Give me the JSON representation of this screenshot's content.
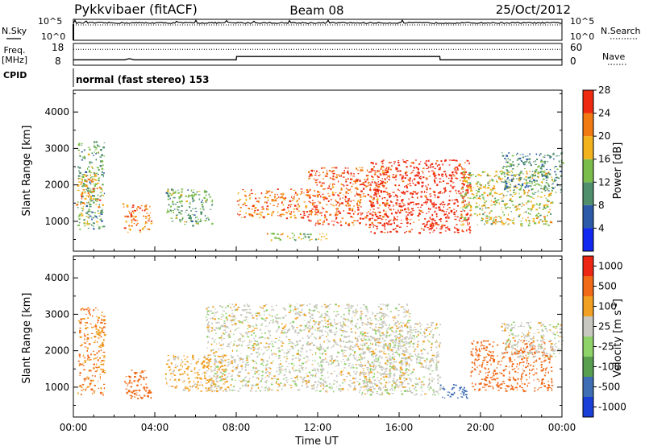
{
  "header": {
    "radar": "Pykkvibaer (fitACF)",
    "beam": "Beam 08",
    "date": "25/Oct/2012"
  },
  "chart_data": [
    {
      "type": "line",
      "panel": "nsky-nsearch",
      "left_label": "N.Sky",
      "right_label": "N.Search",
      "left_ticks": [
        "10^5",
        "10^0"
      ],
      "right_ticks": [
        "10^5",
        "10^0"
      ],
      "x": [
        "00:00",
        "04:00",
        "08:00",
        "12:00",
        "16:00",
        "20:00",
        "00:00"
      ],
      "series": [
        {
          "name": "N.Sky",
          "level": 10000.0
        },
        {
          "name": "N.Search",
          "level": 100000.0
        }
      ]
    },
    {
      "type": "line",
      "panel": "freq-nave",
      "left_label_lines": [
        "Freq.",
        "[MHz]"
      ],
      "right_label": "Nave",
      "left_ticks": [
        "18",
        "8"
      ],
      "right_ticks": [
        "60",
        "0"
      ],
      "left_ylim": [
        8,
        18
      ],
      "right_ylim": [
        0,
        60
      ],
      "series": [
        {
          "name": "Freq.",
          "x": [
            "00:00",
            "02:30",
            "02:45",
            "03:00",
            "08:00",
            "08:01",
            "18:00",
            "18:01",
            "24:00"
          ],
          "y": [
            10.5,
            10.5,
            11.0,
            10.5,
            10.5,
            12.0,
            12.0,
            10.5,
            10.5
          ]
        },
        {
          "name": "Nave",
          "x": [
            "00:00",
            "24:00"
          ],
          "y": [
            44,
            44
          ]
        }
      ]
    },
    {
      "type": "text",
      "panel": "cpid",
      "label": "CPID",
      "value": "normal (fast stereo) 153"
    },
    {
      "type": "heatmap",
      "panel": "power",
      "ylabel": "Slant Range [km]",
      "ylim": [
        180,
        4600
      ],
      "yticks": [
        "1000",
        "2000",
        "3000",
        "4000"
      ],
      "xlim": [
        "00:00",
        "24:00"
      ],
      "colorbar": {
        "label": "Power [dB]",
        "ticks": [
          "4",
          "8",
          "12",
          "16",
          "20",
          "24",
          "28"
        ],
        "colors": [
          "#1028f0",
          "#2d5aa8",
          "#4f8f6c",
          "#7bbd4a",
          "#f2b21c",
          "#f27a12",
          "#ee2a10"
        ]
      },
      "regions": [
        {
          "t": [
            0.2,
            1.5
          ],
          "r": [
            800,
            3200
          ],
          "level": 12
        },
        {
          "t": [
            0.1,
            1.3
          ],
          "r": [
            1400,
            2300
          ],
          "level": 20
        },
        {
          "t": [
            2.4,
            3.8
          ],
          "r": [
            700,
            1500
          ],
          "level": 22
        },
        {
          "t": [
            4.5,
            6.8
          ],
          "r": [
            900,
            1900
          ],
          "level": 12
        },
        {
          "t": [
            8.0,
            11.5
          ],
          "r": [
            1100,
            1900
          ],
          "level": 22
        },
        {
          "t": [
            9.5,
            12.5
          ],
          "r": [
            500,
            700
          ],
          "level": 16
        },
        {
          "t": [
            11.5,
            15.5
          ],
          "r": [
            900,
            2500
          ],
          "level": 24
        },
        {
          "t": [
            14.5,
            19.5
          ],
          "r": [
            700,
            2700
          ],
          "level": 28
        },
        {
          "t": [
            19.0,
            23.5
          ],
          "r": [
            900,
            2400
          ],
          "level": 16
        },
        {
          "t": [
            21.0,
            24.0
          ],
          "r": [
            1800,
            2900
          ],
          "level": 10
        }
      ]
    },
    {
      "type": "heatmap",
      "panel": "velocity",
      "ylabel": "Slant Range [km]",
      "xlabel": "Time UT",
      "ylim": [
        180,
        4600
      ],
      "yticks": [
        "1000",
        "2000",
        "3000",
        "4000"
      ],
      "xticks": [
        "00:00",
        "04:00",
        "08:00",
        "12:00",
        "16:00",
        "20:00",
        "00:00"
      ],
      "colorbar": {
        "label": "Velocity [m s",
        "label_sup": "-1",
        "label_end": "]",
        "ticks": [
          "1000",
          "500",
          "100",
          "25",
          "-25",
          "-100",
          "-500",
          "-1000"
        ],
        "colors": [
          "#1a3ed8",
          "#3f6eb4",
          "#58a04f",
          "#8ed26a",
          "#c8c8c0",
          "#f0a022",
          "#f06a18",
          "#ec2612"
        ]
      },
      "regions": [
        {
          "t": [
            0.2,
            1.5
          ],
          "r": [
            800,
            3200
          ],
          "v": -100
        },
        {
          "t": [
            2.4,
            3.8
          ],
          "r": [
            700,
            1500
          ],
          "v": -300
        },
        {
          "t": [
            4.5,
            7.5
          ],
          "r": [
            900,
            1900
          ],
          "v": -50
        },
        {
          "t": [
            6.5,
            16.5
          ],
          "r": [
            900,
            3300
          ],
          "v": 0
        },
        {
          "t": [
            14.0,
            18.0
          ],
          "r": [
            800,
            2800
          ],
          "v": 0
        },
        {
          "t": [
            18.0,
            19.5
          ],
          "r": [
            700,
            1100
          ],
          "v": 600
        },
        {
          "t": [
            19.5,
            23.5
          ],
          "r": [
            900,
            2300
          ],
          "v": -300
        },
        {
          "t": [
            21.0,
            24.0
          ],
          "r": [
            1800,
            2800
          ],
          "v": 0
        }
      ]
    }
  ]
}
